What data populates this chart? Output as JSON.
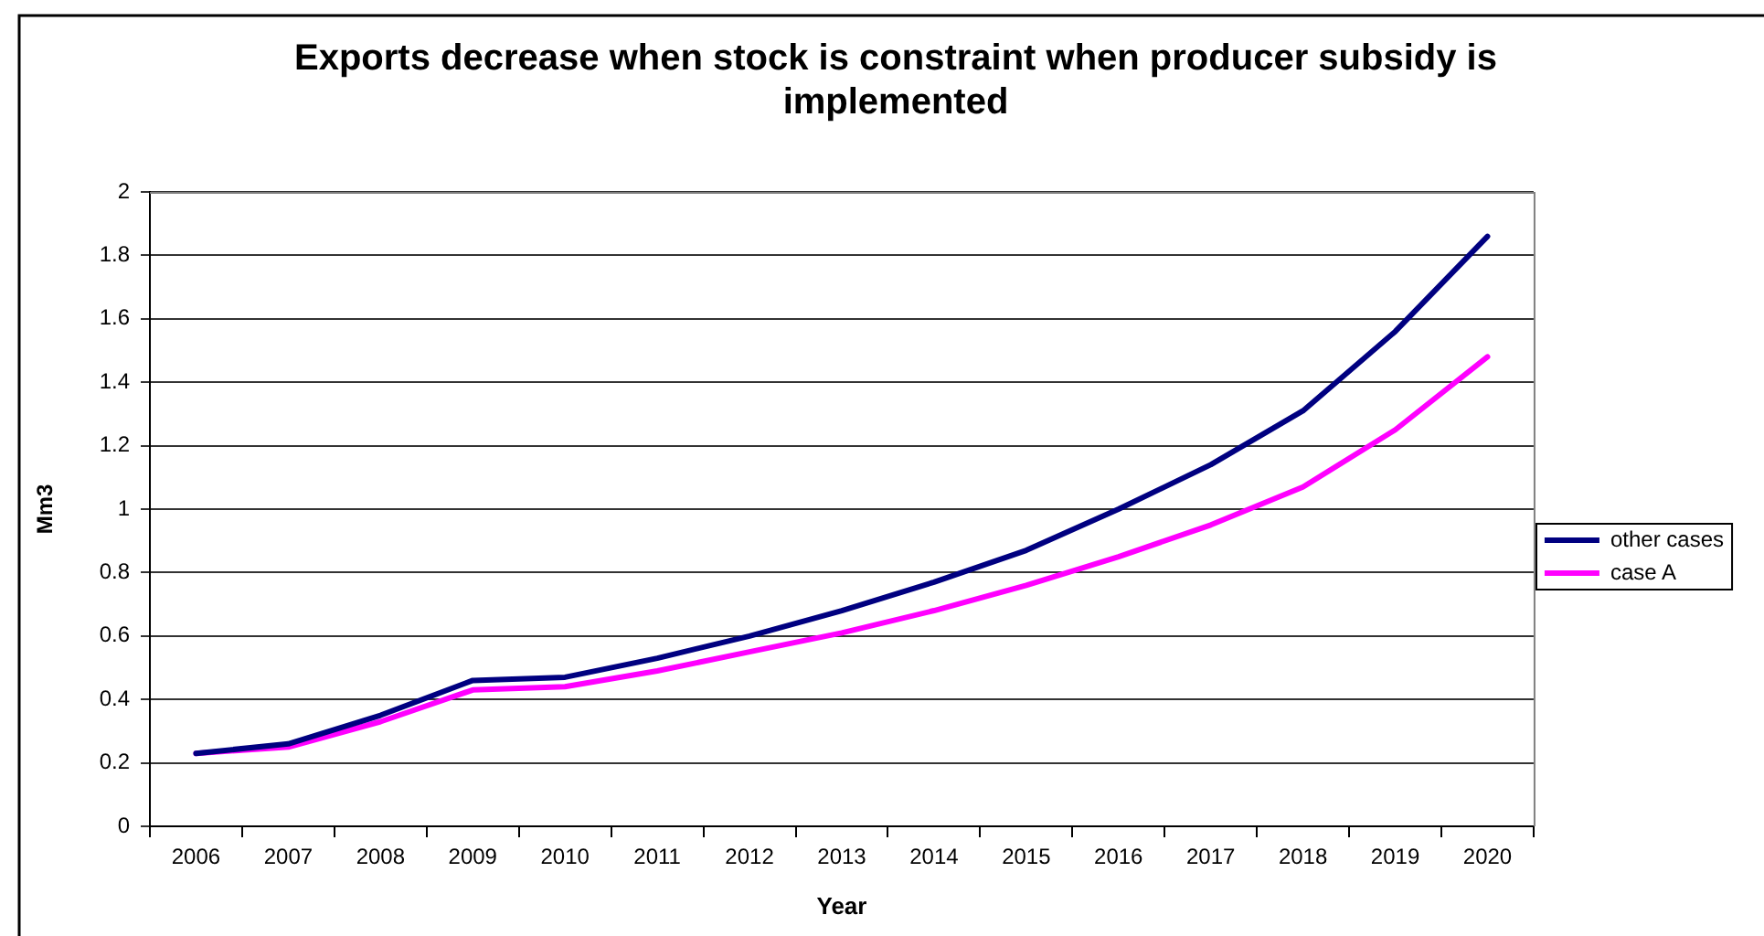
{
  "chart_data": {
    "type": "line",
    "title": "Exports decrease when stock is constraint when producer subsidy is implemented",
    "xlabel": "Year",
    "ylabel": "Mm3",
    "categories": [
      "2006",
      "2007",
      "2008",
      "2009",
      "2010",
      "2011",
      "2012",
      "2013",
      "2014",
      "2015",
      "2016",
      "2017",
      "2018",
      "2019",
      "2020"
    ],
    "series": [
      {
        "name": "other cases",
        "color": "#000080",
        "values": [
          0.23,
          0.26,
          0.35,
          0.46,
          0.47,
          0.53,
          0.6,
          0.68,
          0.77,
          0.87,
          1.0,
          1.14,
          1.31,
          1.56,
          1.86
        ]
      },
      {
        "name": "case A",
        "color": "#ff00ff",
        "values": [
          0.23,
          0.25,
          0.33,
          0.43,
          0.44,
          0.49,
          0.55,
          0.61,
          0.68,
          0.76,
          0.85,
          0.95,
          1.07,
          1.25,
          1.48
        ]
      }
    ],
    "ylim": [
      0,
      2
    ],
    "yticks": [
      0,
      0.2,
      0.4,
      0.6,
      0.8,
      1,
      1.2,
      1.4,
      1.6,
      1.8,
      2
    ],
    "grid": "y",
    "legend": "right",
    "marker": "none"
  }
}
